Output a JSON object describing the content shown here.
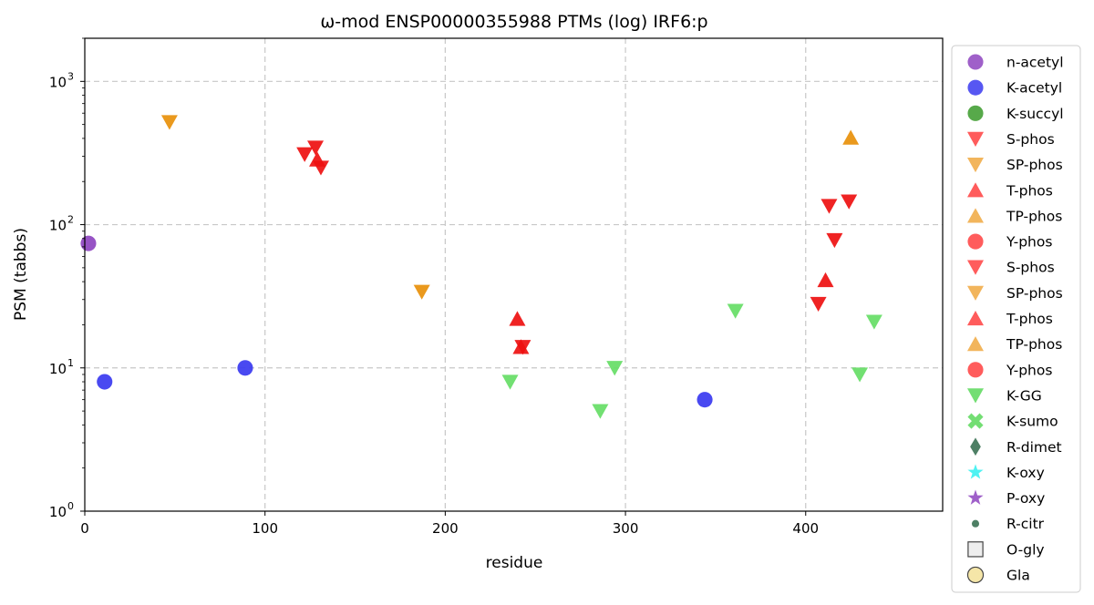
{
  "chart_data": {
    "type": "scatter",
    "title": "ω-mod ENSP00000355988 PTMs (log) IRF6:p",
    "xlabel": "residue",
    "ylabel": "PSM (tabbs)",
    "xlim": [
      0,
      476
    ],
    "ylim": [
      1,
      2000
    ],
    "yscale": "log",
    "grid": true,
    "legend_position": "outside-right",
    "x_ticks": [
      "0",
      "100",
      "200",
      "300",
      "400"
    ],
    "y_ticks": [
      {
        "base": "10",
        "exp": "0",
        "value": 1
      },
      {
        "base": "10",
        "exp": "1",
        "value": 10
      },
      {
        "base": "10",
        "exp": "2",
        "value": 100
      },
      {
        "base": "10",
        "exp": "3",
        "value": 1000
      }
    ],
    "legend": [
      {
        "label": "n-acetyl",
        "marker": "circle",
        "color": "#8e44c0"
      },
      {
        "label": "K-acetyl",
        "marker": "circle",
        "color": "#3a3af0"
      },
      {
        "label": "K-succyl",
        "marker": "circle",
        "color": "#3a9a2a"
      },
      {
        "label": "S-phos",
        "marker": "triangle-down",
        "color": "#ff4040"
      },
      {
        "label": "SP-phos",
        "marker": "triangle-down",
        "color": "#f0a840"
      },
      {
        "label": "T-phos",
        "marker": "triangle-up",
        "color": "#ff4040"
      },
      {
        "label": "TP-phos",
        "marker": "triangle-up",
        "color": "#f0a840"
      },
      {
        "label": "Y-phos",
        "marker": "circle",
        "color": "#ff4040"
      },
      {
        "label": "S-phos",
        "marker": "triangle-down",
        "color": "#ff4040"
      },
      {
        "label": "SP-phos",
        "marker": "triangle-down",
        "color": "#f0a840"
      },
      {
        "label": "T-phos",
        "marker": "triangle-up",
        "color": "#ff4040"
      },
      {
        "label": "TP-phos",
        "marker": "triangle-up",
        "color": "#f0a840"
      },
      {
        "label": "Y-phos",
        "marker": "circle",
        "color": "#ff4040"
      },
      {
        "label": "K-GG",
        "marker": "triangle-down",
        "color": "#5ad85a"
      },
      {
        "label": "K-sumo",
        "marker": "x",
        "color": "#5ad85a"
      },
      {
        "label": "R-dimet",
        "marker": "diamond",
        "color": "#2f6a4a"
      },
      {
        "label": "K-oxy",
        "marker": "star",
        "color": "#30f0f0"
      },
      {
        "label": "P-oxy",
        "marker": "star",
        "color": "#8e44c0"
      },
      {
        "label": "R-citr",
        "marker": "small-circle",
        "color": "#2f6a4a"
      },
      {
        "label": "O-gly",
        "marker": "square-open",
        "color": "#eeeeee"
      },
      {
        "label": "Gla",
        "marker": "circle-open",
        "color": "#f5e6a8"
      }
    ],
    "series": [
      {
        "name": "n-acetyl",
        "marker": "circle",
        "color": "#8e44c0",
        "points": [
          {
            "x": 2,
            "y": 74
          }
        ]
      },
      {
        "name": "K-acetyl",
        "marker": "circle",
        "color": "#3a3af0",
        "points": [
          {
            "x": 11,
            "y": 8
          },
          {
            "x": 89,
            "y": 10
          },
          {
            "x": 344,
            "y": 6
          }
        ]
      },
      {
        "name": "S-phos",
        "marker": "triangle-down",
        "color": "#ee1010",
        "points": [
          {
            "x": 122,
            "y": 310
          },
          {
            "x": 128,
            "y": 345
          },
          {
            "x": 131,
            "y": 250
          },
          {
            "x": 243,
            "y": 14
          },
          {
            "x": 407,
            "y": 28
          },
          {
            "x": 413,
            "y": 135
          },
          {
            "x": 416,
            "y": 78
          },
          {
            "x": 424,
            "y": 145
          }
        ]
      },
      {
        "name": "SP-phos",
        "marker": "triangle-down",
        "color": "#e8900a",
        "points": [
          {
            "x": 47,
            "y": 520
          },
          {
            "x": 187,
            "y": 34
          }
        ]
      },
      {
        "name": "T-phos",
        "marker": "triangle-up",
        "color": "#ee1010",
        "points": [
          {
            "x": 129,
            "y": 285
          },
          {
            "x": 240,
            "y": 22
          },
          {
            "x": 242,
            "y": 14
          },
          {
            "x": 411,
            "y": 41
          }
        ]
      },
      {
        "name": "TP-phos",
        "marker": "triangle-up",
        "color": "#e8900a",
        "points": [
          {
            "x": 425,
            "y": 405
          }
        ]
      },
      {
        "name": "K-GG",
        "marker": "triangle-down",
        "color": "#66dd66",
        "points": [
          {
            "x": 236,
            "y": 8
          },
          {
            "x": 286,
            "y": 5
          },
          {
            "x": 294,
            "y": 10
          },
          {
            "x": 361,
            "y": 25
          },
          {
            "x": 430,
            "y": 9
          },
          {
            "x": 438,
            "y": 21
          }
        ]
      }
    ]
  }
}
